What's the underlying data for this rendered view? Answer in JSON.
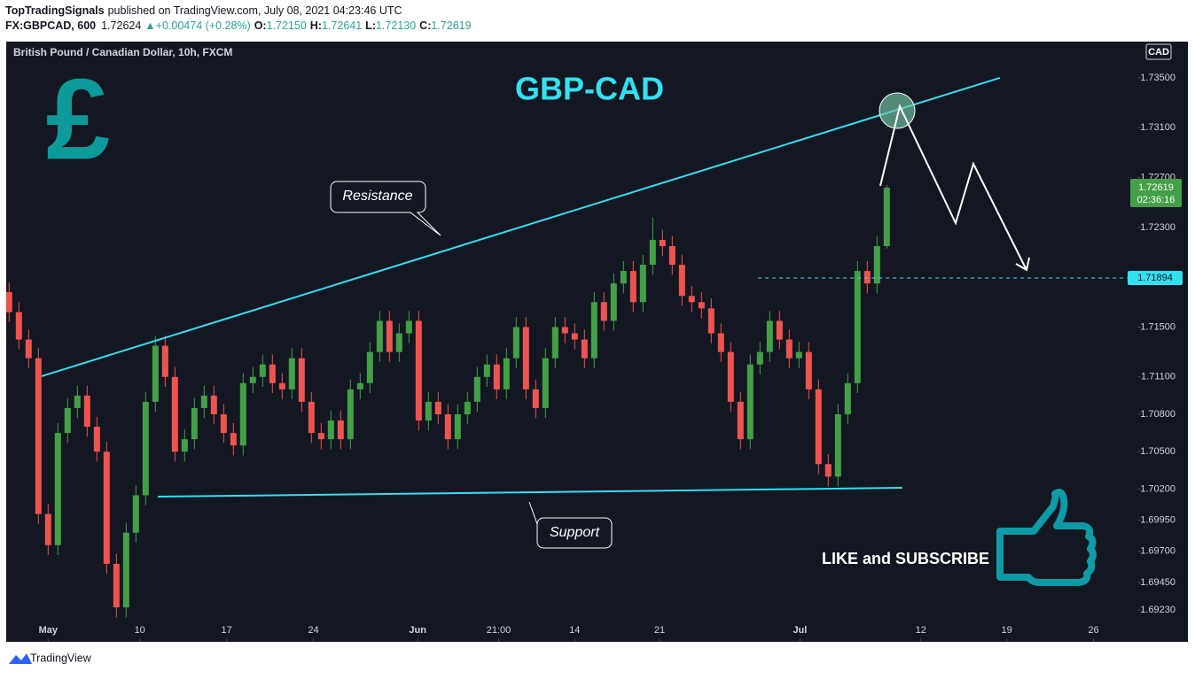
{
  "header": {
    "author": "TopTradingSignals",
    "published": "published on TradingView.com, July 08, 2021 04:23:46 UTC",
    "symbol": "FX:GBPCAD, 600",
    "last": "1.72624",
    "change": "▲+0.00474 (+0.28%)",
    "ohlc": [
      {
        "key": "O:",
        "value": "1.72150"
      },
      {
        "key": "H:",
        "value": "1.72641"
      },
      {
        "key": "L:",
        "value": "1.72130"
      },
      {
        "key": "C:",
        "value": "1.72619"
      }
    ]
  },
  "footer": {
    "brand": "TradingView"
  },
  "chart_data": {
    "type": "candlestick",
    "title": "GBP-CAD",
    "subtitle": "British Pound / Canadian Dollar, 10h, FXCM",
    "currency": "CAD",
    "icon": "£",
    "cta": "LIKE and SUBSCRIBE",
    "countdown": "02:36:16",
    "up_color": "#43a047",
    "down_color": "#ef5350",
    "line_color": "#33e0f0",
    "target": 1.71894,
    "grid": false,
    "open": [
      1.7178,
      1.7162,
      1.714,
      1.7125,
      1.7,
      1.6975,
      1.7065,
      1.7085,
      1.7095,
      1.707,
      1.705,
      1.696,
      1.6925,
      1.6985,
      1.7015,
      1.709,
      1.7135,
      1.711,
      1.705,
      1.706,
      1.7085,
      1.7095,
      1.708,
      1.7065,
      1.7055,
      1.7105,
      1.711,
      1.712,
      1.7105,
      1.71,
      1.7125,
      1.709,
      1.7065,
      1.706,
      1.7075,
      1.706,
      1.71,
      1.7105,
      1.713,
      1.7155,
      1.713,
      1.7145,
      1.7155,
      1.7075,
      1.709,
      1.708,
      1.706,
      1.708,
      1.709,
      1.711,
      1.712,
      1.71,
      1.7125,
      1.715,
      1.71,
      1.7085,
      1.7125,
      1.715,
      1.7145,
      1.714,
      1.7125,
      1.717,
      1.7155,
      1.7185,
      1.7195,
      1.717,
      1.72,
      1.722,
      1.7215,
      1.72,
      1.7175,
      1.717,
      1.7165,
      1.7145,
      1.713,
      1.709,
      1.706,
      1.712,
      1.713,
      1.7155,
      1.714,
      1.7125,
      1.713,
      1.71,
      1.704,
      1.703,
      1.708,
      1.7105,
      1.7195,
      1.7185,
      1.7215
    ],
    "high": [
      1.7186,
      1.717,
      1.7148,
      1.7133,
      1.7008,
      1.7073,
      1.7093,
      1.7103,
      1.7103,
      1.7078,
      1.7058,
      1.6968,
      1.6993,
      1.7023,
      1.7098,
      1.7143,
      1.7143,
      1.7118,
      1.7068,
      1.7093,
      1.7103,
      1.7103,
      1.7088,
      1.7073,
      1.7113,
      1.7118,
      1.7128,
      1.7128,
      1.7113,
      1.7133,
      1.7133,
      1.7098,
      1.7073,
      1.7083,
      1.7083,
      1.7108,
      1.7113,
      1.7138,
      1.7163,
      1.7163,
      1.7153,
      1.7163,
      1.7163,
      1.7098,
      1.7098,
      1.7088,
      1.7088,
      1.7098,
      1.7118,
      1.7128,
      1.7128,
      1.7133,
      1.7158,
      1.7158,
      1.7108,
      1.7133,
      1.7158,
      1.7158,
      1.7153,
      1.7148,
      1.7178,
      1.7178,
      1.7193,
      1.7203,
      1.7203,
      1.7208,
      1.7238,
      1.7228,
      1.7223,
      1.7208,
      1.7183,
      1.7178,
      1.7173,
      1.7153,
      1.7138,
      1.7098,
      1.7128,
      1.7138,
      1.7163,
      1.7163,
      1.7148,
      1.7138,
      1.7138,
      1.7108,
      1.7048,
      1.7088,
      1.7113,
      1.7203,
      1.7203,
      1.7223,
      1.72641
    ],
    "low": [
      1.7154,
      1.7132,
      1.7117,
      1.6992,
      1.6967,
      1.6967,
      1.7057,
      1.7077,
      1.7062,
      1.7042,
      1.6952,
      1.6917,
      1.6917,
      1.6977,
      1.7007,
      1.7082,
      1.7102,
      1.7042,
      1.7042,
      1.7052,
      1.7077,
      1.7072,
      1.7057,
      1.7047,
      1.7047,
      1.7097,
      1.7102,
      1.7097,
      1.7092,
      1.7092,
      1.7082,
      1.7057,
      1.7052,
      1.7052,
      1.7052,
      1.7052,
      1.7092,
      1.7097,
      1.7122,
      1.7122,
      1.7122,
      1.7137,
      1.7067,
      1.7067,
      1.7072,
      1.7052,
      1.7052,
      1.7072,
      1.7082,
      1.7102,
      1.7092,
      1.7092,
      1.7117,
      1.7092,
      1.7077,
      1.7077,
      1.7117,
      1.7137,
      1.7132,
      1.7117,
      1.7117,
      1.7147,
      1.7147,
      1.7177,
      1.7162,
      1.7162,
      1.7192,
      1.7207,
      1.7192,
      1.7167,
      1.7162,
      1.7157,
      1.7137,
      1.7122,
      1.7082,
      1.7052,
      1.7052,
      1.7112,
      1.7122,
      1.7132,
      1.7117,
      1.7117,
      1.7092,
      1.7032,
      1.7022,
      1.7022,
      1.7072,
      1.7097,
      1.7177,
      1.7177,
      1.7213
    ],
    "close": [
      1.7162,
      1.714,
      1.7125,
      1.7,
      1.6975,
      1.7065,
      1.7085,
      1.7095,
      1.707,
      1.705,
      1.696,
      1.6925,
      1.6985,
      1.7015,
      1.709,
      1.7135,
      1.711,
      1.705,
      1.706,
      1.7085,
      1.7095,
      1.708,
      1.7065,
      1.7055,
      1.7105,
      1.711,
      1.712,
      1.7105,
      1.71,
      1.7125,
      1.709,
      1.7065,
      1.706,
      1.7075,
      1.706,
      1.71,
      1.7105,
      1.713,
      1.7155,
      1.713,
      1.7145,
      1.7155,
      1.7075,
      1.709,
      1.708,
      1.706,
      1.708,
      1.709,
      1.711,
      1.712,
      1.71,
      1.7125,
      1.715,
      1.71,
      1.7085,
      1.7125,
      1.715,
      1.7145,
      1.714,
      1.7125,
      1.717,
      1.7155,
      1.7185,
      1.7195,
      1.717,
      1.72,
      1.722,
      1.7215,
      1.72,
      1.7175,
      1.717,
      1.7165,
      1.7145,
      1.713,
      1.709,
      1.706,
      1.712,
      1.713,
      1.7155,
      1.714,
      1.7125,
      1.713,
      1.71,
      1.704,
      1.703,
      1.708,
      1.7105,
      1.7195,
      1.7185,
      1.7215,
      1.72619
    ],
    "xlim": [
      -0.3,
      115.7
    ],
    "xticks": [
      {
        "value": 4.0,
        "label": "May"
      },
      {
        "value": 13.4,
        "label": "10"
      },
      {
        "value": 22.3,
        "label": "17"
      },
      {
        "value": 31.2,
        "label": "24"
      },
      {
        "value": 41.9,
        "label": "Jun"
      },
      {
        "value": 50.2,
        "label": "21:00"
      },
      {
        "value": 58.0,
        "label": "14"
      },
      {
        "value": 66.7,
        "label": "21"
      },
      {
        "value": 81.1,
        "label": "Jul"
      },
      {
        "value": 93.5,
        "label": "12"
      },
      {
        "value": 102.3,
        "label": "19"
      },
      {
        "value": 111.2,
        "label": "26"
      }
    ],
    "ylim": [
      1.68974,
      1.73791
    ],
    "yticks": [
      {
        "value": 1.735,
        "label": "1.73500"
      },
      {
        "value": 1.731,
        "label": "1.73100"
      },
      {
        "value": 1.727,
        "label": "1.72700"
      },
      {
        "value": 1.723,
        "label": "1.72300"
      },
      {
        "value": 1.715,
        "label": "1.71500"
      },
      {
        "value": 1.711,
        "label": "1.71100"
      },
      {
        "value": 1.708,
        "label": "1.70800"
      },
      {
        "value": 1.705,
        "label": "1.70500"
      },
      {
        "value": 1.702,
        "label": "1.70200"
      },
      {
        "value": 1.6995,
        "label": "1.69950"
      },
      {
        "value": 1.697,
        "label": "1.69700"
      },
      {
        "value": 1.6945,
        "label": "1.69450"
      },
      {
        "value": 1.6923,
        "label": "1.69230"
      }
    ],
    "resistance": {
      "label": "Resistance",
      "from": [
        3.34,
        1.71106
      ],
      "to": [
        101.6,
        1.735
      ]
    },
    "support": {
      "label": "Support",
      "from": [
        15.25,
        1.70139
      ],
      "to": [
        91.6,
        1.7021
      ]
    },
    "target_from": 76.8
  }
}
